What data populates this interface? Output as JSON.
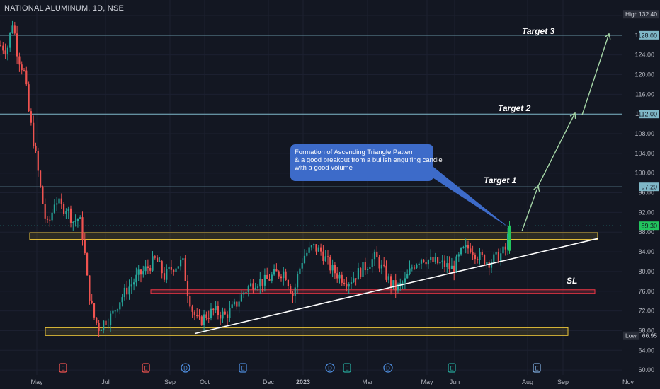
{
  "header": {
    "title": "NATIONAL ALUMINUM, 1D, NSE"
  },
  "annotation": {
    "lines": [
      "Formation of Ascending Triangle Pattern",
      "& a good breakout from a bullish engulfing candle",
      "with a good volume"
    ]
  },
  "targets": [
    {
      "label": "Target 3",
      "price": 128.0,
      "price_label": "128.00"
    },
    {
      "label": "Target 2",
      "price": 112.0,
      "price_label": "112.00"
    },
    {
      "label": "Target 1",
      "price": 97.2,
      "price_label": "97.20"
    }
  ],
  "stop_loss": {
    "label": "SL",
    "price": 76.0
  },
  "current_price": {
    "value": 89.3,
    "label": "89.30"
  },
  "high": {
    "label": "High",
    "value": "132.40"
  },
  "low": {
    "label": "Low",
    "value": "66.95"
  },
  "colors": {
    "background": "#131722",
    "up": "#26a69a",
    "up_bright": "#22c55e",
    "down": "#ef5350",
    "target_line": "#7fb7c7",
    "zone_yellow": "#f0c93a",
    "zone_red": "#f23645",
    "trendline": "#ffffff",
    "arrow": "#a5d6a7",
    "callout": "#3d6bc9"
  },
  "chart_data": {
    "type": "candlestick",
    "title": "NATIONAL ALUMINUM, 1D, NSE",
    "ylim": [
      60,
      132.4
    ],
    "yticks": [
      60,
      64,
      68,
      72,
      76,
      80,
      84,
      88,
      92,
      96,
      100,
      104,
      108,
      112,
      116,
      120,
      124,
      128,
      132
    ],
    "ytick_labels": [
      "60.00",
      "64.00",
      "68.00",
      "72.00",
      "76.00",
      "80.00",
      "84.00",
      "88.00",
      "92.00",
      "96.00",
      "100.00",
      "104.00",
      "108.00",
      "112.00",
      "116.00",
      "120.00",
      "124.00",
      "128.00",
      "132.00"
    ],
    "x_labels": [
      "May",
      "Jul",
      "Sep",
      "Oct",
      "Dec",
      "2023",
      "Mar",
      "May",
      "Jun",
      "Aug",
      "Sep",
      "Nov"
    ],
    "price_path": [
      [
        0,
        126
      ],
      [
        10,
        125
      ],
      [
        18,
        131
      ],
      [
        25,
        124
      ],
      [
        35,
        120
      ],
      [
        40,
        113
      ],
      [
        50,
        104
      ],
      [
        58,
        96
      ],
      [
        66,
        89
      ],
      [
        72,
        91
      ],
      [
        78,
        95
      ],
      [
        86,
        93
      ],
      [
        94,
        93
      ],
      [
        104,
        90
      ],
      [
        112,
        91
      ],
      [
        118,
        86
      ],
      [
        124,
        77
      ],
      [
        132,
        71
      ],
      [
        140,
        68.5
      ],
      [
        148,
        70
      ],
      [
        158,
        71
      ],
      [
        168,
        74
      ],
      [
        180,
        76.5
      ],
      [
        195,
        79
      ],
      [
        210,
        81
      ],
      [
        220,
        82.5
      ],
      [
        232,
        79
      ],
      [
        245,
        81
      ],
      [
        258,
        82
      ],
      [
        265,
        76
      ],
      [
        272,
        72
      ],
      [
        280,
        69.5
      ],
      [
        290,
        71
      ],
      [
        302,
        72
      ],
      [
        318,
        71
      ],
      [
        332,
        73
      ],
      [
        345,
        76
      ],
      [
        360,
        78
      ],
      [
        375,
        78
      ],
      [
        388,
        79.5
      ],
      [
        402,
        80
      ],
      [
        414,
        75
      ],
      [
        420,
        79
      ],
      [
        428,
        83
      ],
      [
        442,
        85
      ],
      [
        454,
        84
      ],
      [
        468,
        80.5
      ],
      [
        480,
        79
      ],
      [
        492,
        78
      ],
      [
        504,
        79.5
      ],
      [
        516,
        81
      ],
      [
        530,
        83
      ],
      [
        542,
        80
      ],
      [
        552,
        77.5
      ],
      [
        560,
        76.5
      ],
      [
        572,
        78
      ],
      [
        584,
        81.5
      ],
      [
        596,
        83
      ],
      [
        610,
        82
      ],
      [
        624,
        81.5
      ],
      [
        640,
        80.5
      ],
      [
        652,
        84
      ],
      [
        664,
        85
      ],
      [
        676,
        83
      ],
      [
        690,
        82
      ],
      [
        704,
        83
      ],
      [
        714,
        84.5
      ],
      [
        720,
        89.3
      ]
    ],
    "targets": [
      97.2,
      112.0,
      128.0
    ],
    "stop_loss": 76.0,
    "resistance_zone": [
      86.8,
      87.6
    ],
    "support_zone": [
      67.3,
      68.3
    ],
    "trendline": {
      "from": {
        "x_label": "Oct",
        "price": 67.4
      },
      "to_price": 86.7
    },
    "event_markers": [
      {
        "x_label": "Jul",
        "letter": "E",
        "color": "#ef5350"
      },
      {
        "x_label": "Sep",
        "letter": "E",
        "color": "#ef5350"
      },
      {
        "x_label": "Sep",
        "letter": "D",
        "color": "#4d8bdb"
      },
      {
        "x_label": "Oct",
        "letter": "E",
        "color": "#4d8bdb"
      },
      {
        "x_label": "Dec",
        "letter": "E",
        "color": "#4d8bdb"
      },
      {
        "x_label": "2023",
        "letter": "D",
        "color": "#4d8bdb"
      },
      {
        "x_label": "2023",
        "letter": "E",
        "color": "#26a69a"
      },
      {
        "x_label": "Mar",
        "letter": "D",
        "color": "#4d8bdb"
      },
      {
        "x_label": "Jun",
        "letter": "E",
        "color": "#26a69a"
      },
      {
        "x_label": "Aug",
        "letter": "E",
        "color": "#7ba7d9"
      }
    ]
  }
}
